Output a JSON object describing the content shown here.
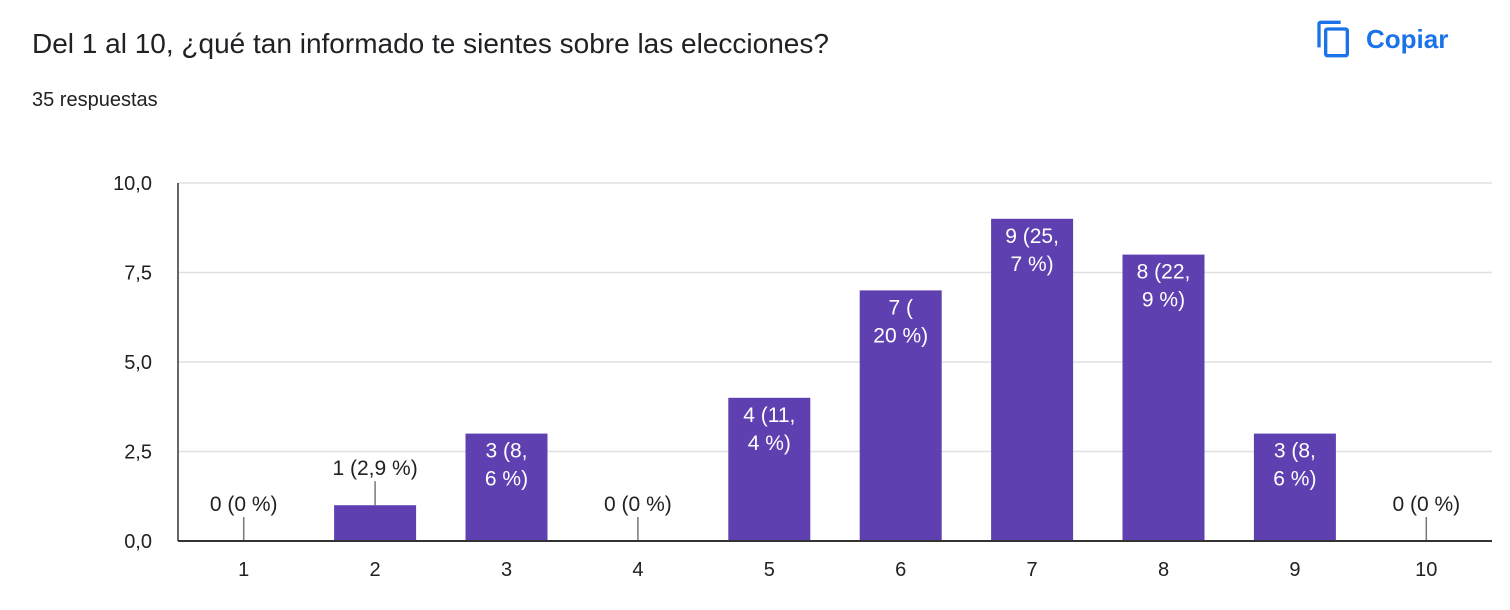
{
  "header": {
    "title": "Del 1 al 10, ¿qué tan informado te sientes sobre las elecciones?",
    "subtitle": "35 respuestas",
    "copy_label": "Copiar",
    "copy_icon": "copy-icon"
  },
  "colors": {
    "bar": "#5e40b1",
    "grid": "#e0e0e0",
    "axis": "#333333",
    "accent": "#1a73e8",
    "label_outside": "#202124",
    "label_inside": "#ffffff"
  },
  "chart_data": {
    "type": "bar",
    "categories": [
      "1",
      "2",
      "3",
      "4",
      "5",
      "6",
      "7",
      "8",
      "9",
      "10"
    ],
    "values": [
      0,
      1,
      3,
      0,
      4,
      7,
      9,
      8,
      3,
      0
    ],
    "data_labels": [
      [
        "0 (0 %)"
      ],
      [
        "1 (2,9 %)"
      ],
      [
        "3 (8,",
        "6 %)"
      ],
      [
        "0 (0 %)"
      ],
      [
        "4 (11,",
        "4 %)"
      ],
      [
        "7 (",
        "20 %)"
      ],
      [
        "9 (25,",
        "7 %)"
      ],
      [
        "8 (22,",
        "9 %)"
      ],
      [
        "3 (8,",
        "6 %)"
      ],
      [
        "0 (0 %)"
      ]
    ],
    "yticks": [
      "0,0",
      "2,5",
      "5,0",
      "7,5",
      "10,0"
    ],
    "ytick_values": [
      0,
      2.5,
      5,
      7.5,
      10
    ],
    "ylim": [
      0,
      10
    ],
    "grid": true,
    "legend": "none"
  }
}
